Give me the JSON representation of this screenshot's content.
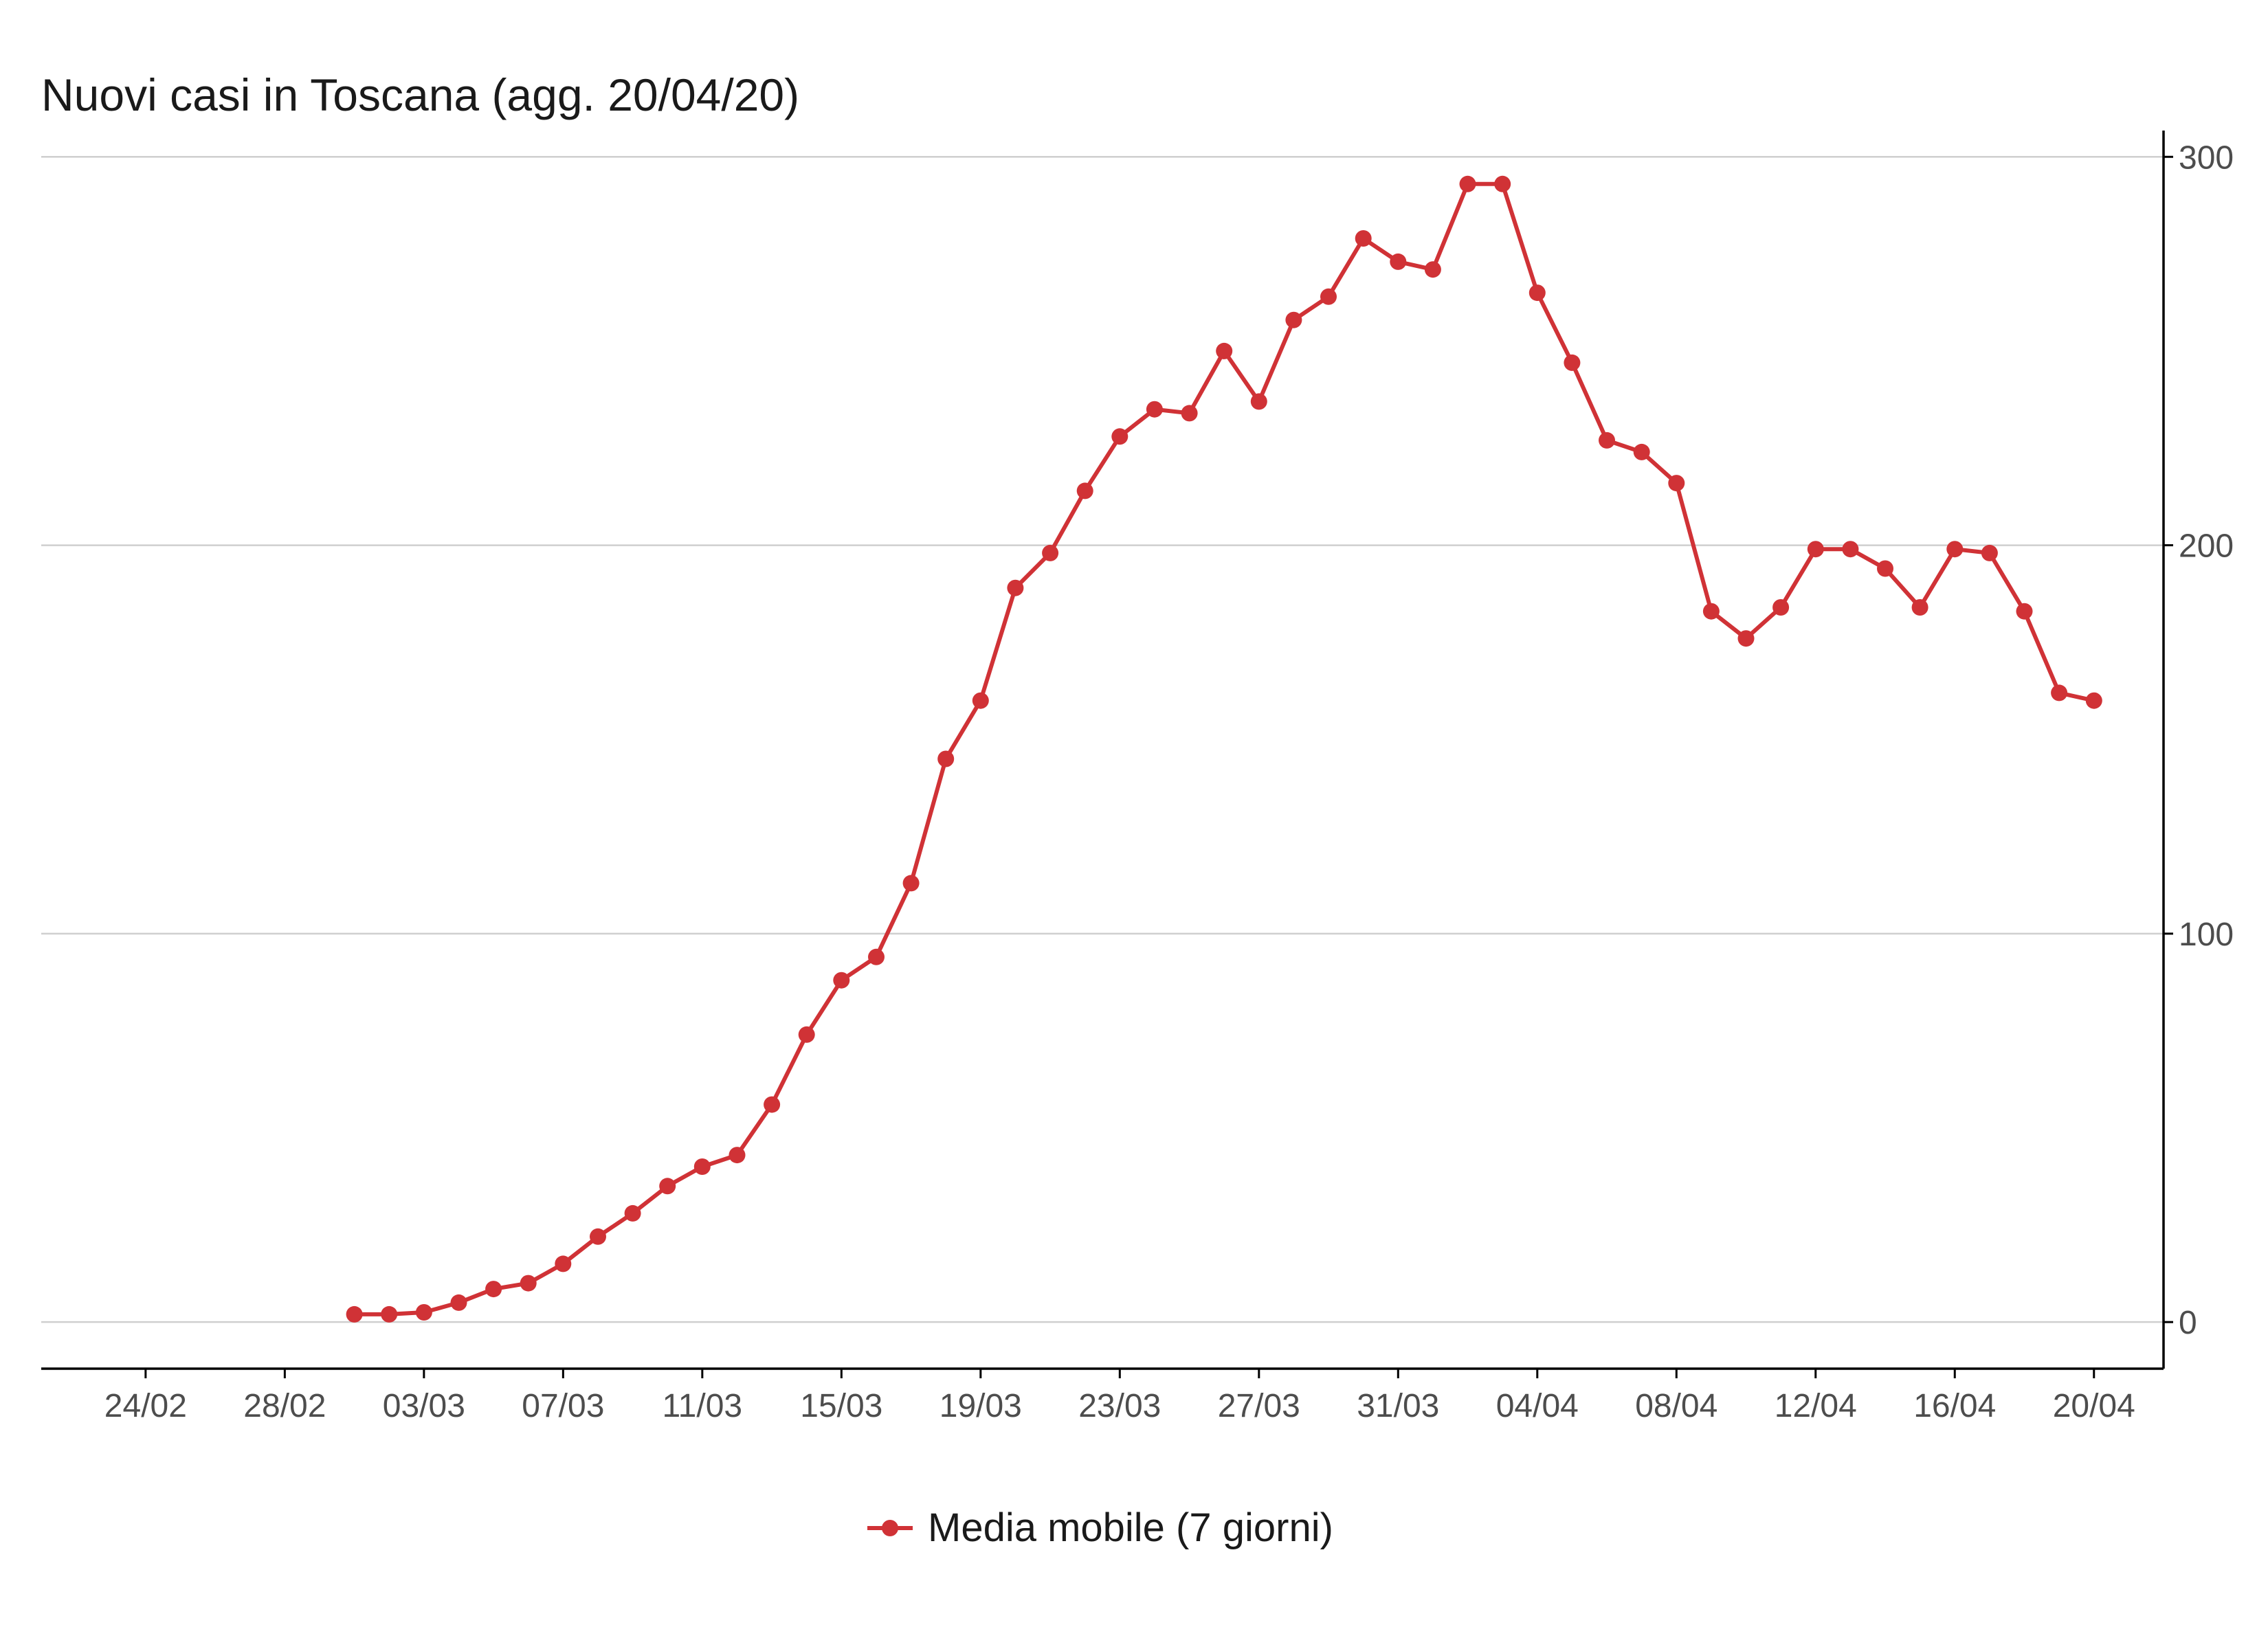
{
  "chart_data": {
    "type": "line",
    "title": "Nuovi casi in Toscana (agg. 20/04/20)",
    "xlabel": "",
    "ylabel": "",
    "x_ticks": [
      "24/02",
      "28/02",
      "03/03",
      "07/03",
      "11/03",
      "15/03",
      "19/03",
      "23/03",
      "27/03",
      "31/03",
      "04/04",
      "08/04",
      "12/04",
      "16/04",
      "20/04"
    ],
    "x_range": [
      "2020-02-21",
      "2020-04-22"
    ],
    "y_ticks": [
      0,
      100,
      200,
      300
    ],
    "ylim": [
      -12,
      305
    ],
    "y_axis_position": "right",
    "grid": "horizontal",
    "legend_position": "bottom",
    "series": [
      {
        "name": "Media mobile (7 giorni)",
        "color": "#d03236",
        "marker": "circle",
        "x": [
          "2020-03-01",
          "2020-03-02",
          "2020-03-03",
          "2020-03-04",
          "2020-03-05",
          "2020-03-06",
          "2020-03-07",
          "2020-03-08",
          "2020-03-09",
          "2020-03-10",
          "2020-03-11",
          "2020-03-12",
          "2020-03-13",
          "2020-03-14",
          "2020-03-15",
          "2020-03-16",
          "2020-03-17",
          "2020-03-18",
          "2020-03-19",
          "2020-03-20",
          "2020-03-21",
          "2020-03-22",
          "2020-03-23",
          "2020-03-24",
          "2020-03-25",
          "2020-03-26",
          "2020-03-27",
          "2020-03-28",
          "2020-03-29",
          "2020-03-30",
          "2020-03-31",
          "2020-04-01",
          "2020-04-02",
          "2020-04-03",
          "2020-04-04",
          "2020-04-05",
          "2020-04-06",
          "2020-04-07",
          "2020-04-08",
          "2020-04-09",
          "2020-04-10",
          "2020-04-11",
          "2020-04-12",
          "2020-04-13",
          "2020-04-14",
          "2020-04-15",
          "2020-04-16",
          "2020-04-17",
          "2020-04-18",
          "2020-04-19",
          "2020-04-20"
        ],
        "values": [
          2,
          2,
          2.5,
          5,
          8.5,
          10,
          15,
          22,
          28,
          35,
          40,
          43,
          56,
          74,
          88,
          94,
          113,
          145,
          160,
          189,
          198,
          214,
          228,
          235,
          234,
          250,
          237,
          258,
          264,
          279,
          273,
          271,
          293,
          293,
          265,
          247,
          227,
          224,
          216,
          183,
          176,
          184,
          199,
          199,
          194,
          184,
          199,
          198,
          183,
          162,
          160
        ]
      }
    ]
  }
}
